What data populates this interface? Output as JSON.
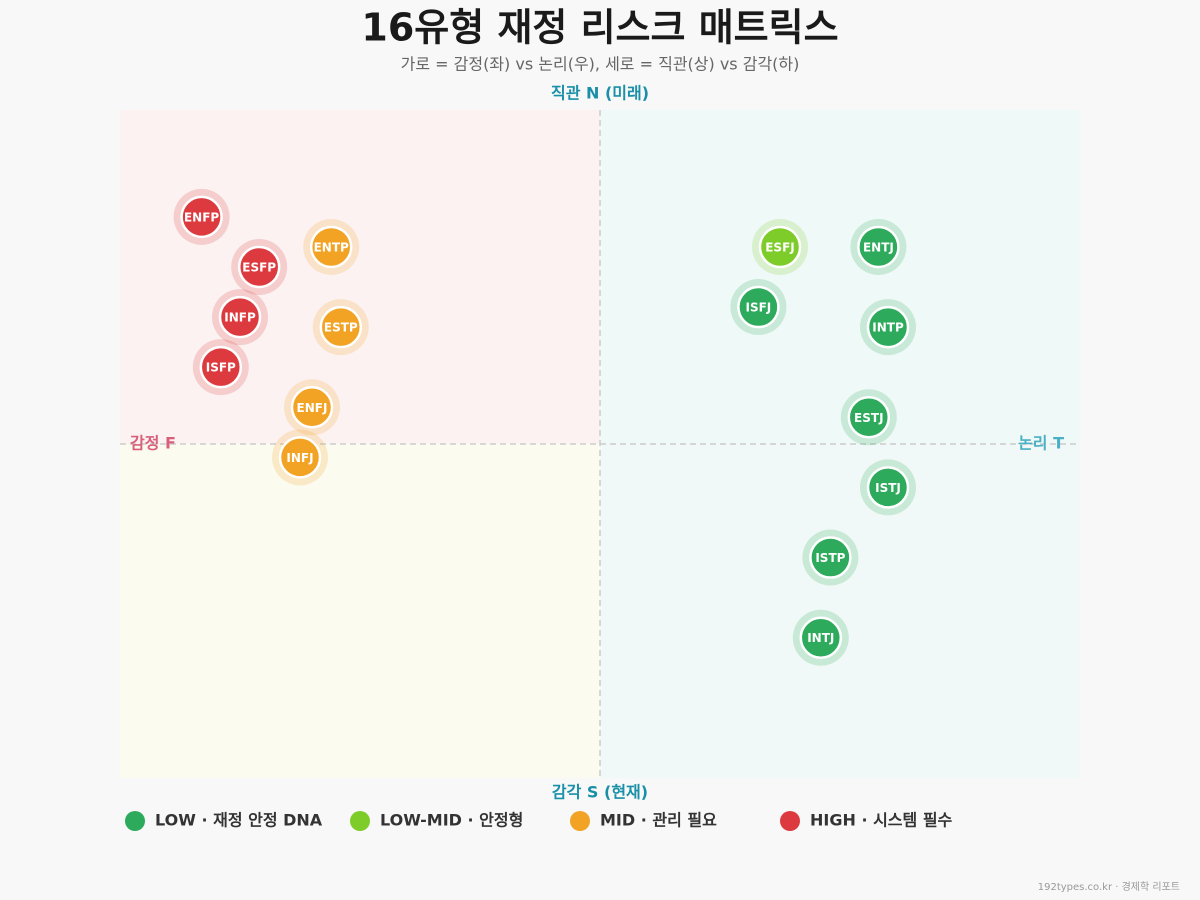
{
  "chart_data": {
    "type": "scatter",
    "title": "16유형 재정 리스크 매트릭스",
    "subtitle": "가로 = 감정(좌) vs 논리(우), 세로 = 직관(상) vs 감각(하)",
    "top_label": "직관 N (미래)",
    "bottom_label": "감각 S (현재)",
    "left_label": "감정 F",
    "right_label": "논리 T",
    "footer": "192types.co.kr · 경제학 리포트",
    "xlim": [
      -100,
      100
    ],
    "ylim": [
      -100,
      100
    ],
    "series": [
      {
        "name": "LOW · 재정 안정 DNA",
        "color": "#2eaa5c",
        "labels": [
          "ENTJ",
          "ISFJ",
          "INTP",
          "ESTJ",
          "ISTJ",
          "ISTP",
          "INTJ"
        ],
        "x": [
          58,
          33,
          60,
          56,
          60,
          48,
          46
        ],
        "y": [
          59,
          41,
          35,
          8,
          -13,
          -34,
          -58
        ]
      },
      {
        "name": "LOW-MID · 안정형",
        "color": "#7dcc2a",
        "labels": [
          "ESFJ"
        ],
        "x": [
          37.5
        ],
        "y": [
          59
        ]
      },
      {
        "name": "MID · 관리 필요",
        "color": "#f2a324",
        "labels": [
          "ENTP",
          "ESTP",
          "ENFJ",
          "INFJ"
        ],
        "x": [
          -56,
          -54,
          -60,
          -62.5
        ],
        "y": [
          59,
          35,
          11,
          -4
        ]
      },
      {
        "name": "HIGH · 시스템 필수",
        "color": "#dc3a3e",
        "labels": [
          "ENFP",
          "ESFP",
          "INFP",
          "ISFP"
        ],
        "x": [
          -83,
          -71,
          -75,
          -79
        ],
        "y": [
          68,
          53,
          38,
          23
        ]
      }
    ]
  }
}
